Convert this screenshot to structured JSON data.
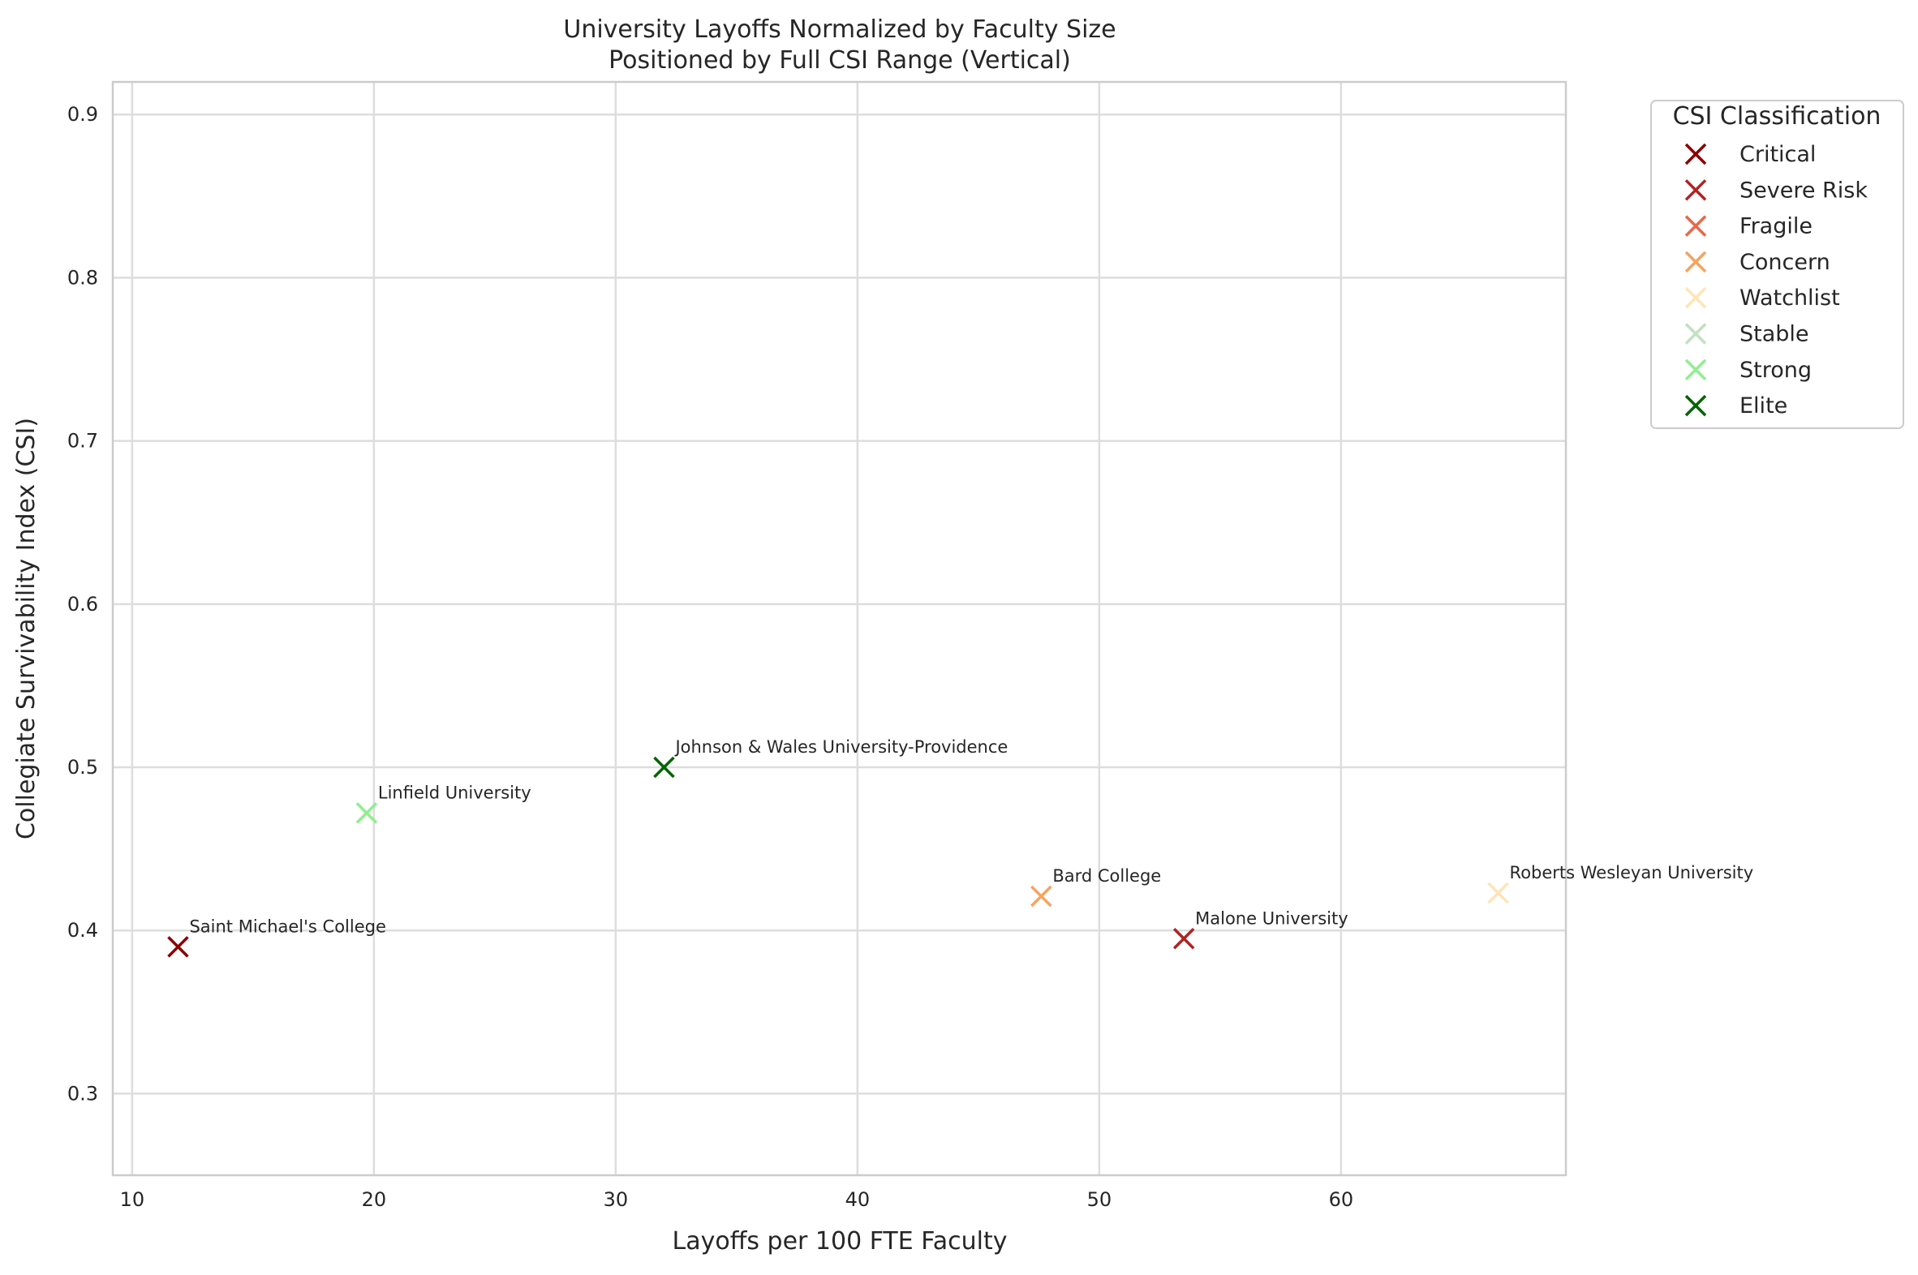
{
  "chart_data": {
    "type": "scatter",
    "title": "University Layoffs Normalized by Faculty Size",
    "subtitle": "Positioned by Full CSI Range (Vertical)",
    "xlabel": "Layoffs per 100 FTE Faculty",
    "ylabel": "Collegiate Survivability Index (CSI)",
    "xlim": [
      9.2,
      69.3
    ],
    "ylim": [
      0.25,
      0.92
    ],
    "xticks": [
      10,
      20,
      30,
      40,
      50,
      60
    ],
    "yticks": [
      0.3,
      0.4,
      0.5,
      0.6,
      0.7,
      0.8,
      0.9
    ],
    "grid": true,
    "legend": {
      "title": "CSI Classification",
      "placement": "outside-top-right",
      "entries": [
        {
          "label": "Critical",
          "color": "#8b0000"
        },
        {
          "label": "Severe Risk",
          "color": "#b22222"
        },
        {
          "label": "Fragile",
          "color": "#e8684a"
        },
        {
          "label": "Concern",
          "color": "#f4a460"
        },
        {
          "label": "Watchlist",
          "color": "#ffe4b5"
        },
        {
          "label": "Stable",
          "color": "#c1e1c1"
        },
        {
          "label": "Strong",
          "color": "#90ee90"
        },
        {
          "label": "Elite",
          "color": "#006400"
        }
      ]
    },
    "points": [
      {
        "label": "Saint Michael's College",
        "x": 11.9,
        "y": 0.39,
        "class": "Critical"
      },
      {
        "label": "Linfield University",
        "x": 19.7,
        "y": 0.472,
        "class": "Strong"
      },
      {
        "label": "Johnson & Wales University-Providence",
        "x": 32.0,
        "y": 0.5,
        "class": "Elite"
      },
      {
        "label": "Bard College",
        "x": 47.6,
        "y": 0.421,
        "class": "Concern"
      },
      {
        "label": "Malone University",
        "x": 53.5,
        "y": 0.395,
        "class": "Severe Risk"
      },
      {
        "label": "Roberts Wesleyan University",
        "x": 66.5,
        "y": 0.423,
        "class": "Watchlist"
      }
    ]
  }
}
